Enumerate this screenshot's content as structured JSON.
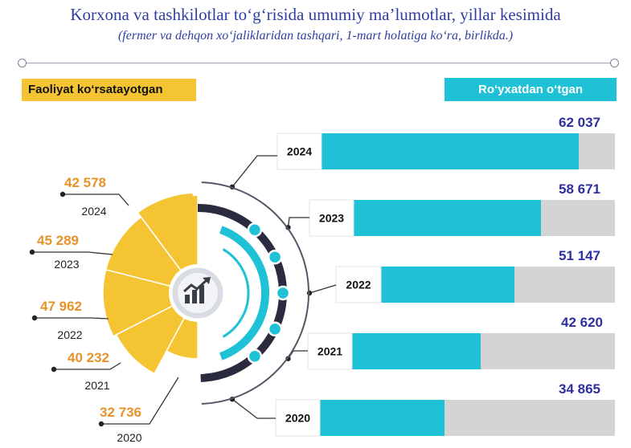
{
  "header": {
    "title": "Korxona va tashkilotlar to‘g‘risida umumiy ma’lumotlar, yillar kesimida",
    "subtitle": "(fermer va dehqon xo‘jaliklaridan tashqari, 1-mart holatiga ko‘ra, birlikda.)"
  },
  "legend": {
    "left_label": "Faoliyat ko‘rsatayotgan",
    "right_label": "Ro‘yxatdan o‘tgan"
  },
  "colors": {
    "active": "#f5c432",
    "registered": "#1ec1d6",
    "bar_track": "#d4d4d4",
    "registered_value_text": "#2d2fa1",
    "active_value_text": "#e8922a",
    "ring_dark": "#2b2b3f"
  },
  "icon": "chart-growth-icon",
  "chart_data": [
    {
      "type": "pie",
      "series_label": "Faoliyat ko‘rsatayotgan",
      "categories": [
        "2024",
        "2023",
        "2022",
        "2021",
        "2020"
      ],
      "values": [
        42578,
        45289,
        47962,
        40232,
        32736
      ],
      "value_labels": [
        "42 578",
        "45 289",
        "47 962",
        "40 232",
        "32 736"
      ]
    },
    {
      "type": "bar",
      "orientation": "horizontal",
      "series_label": "Ro‘yxatdan o‘tgan",
      "categories": [
        "2024",
        "2023",
        "2022",
        "2021",
        "2020"
      ],
      "values": [
        62037,
        58671,
        51147,
        42620,
        34865
      ],
      "value_labels": [
        "62 037",
        "58 671",
        "51 147",
        "42 620",
        "34 865"
      ],
      "xlim": [
        0,
        70000
      ]
    }
  ]
}
